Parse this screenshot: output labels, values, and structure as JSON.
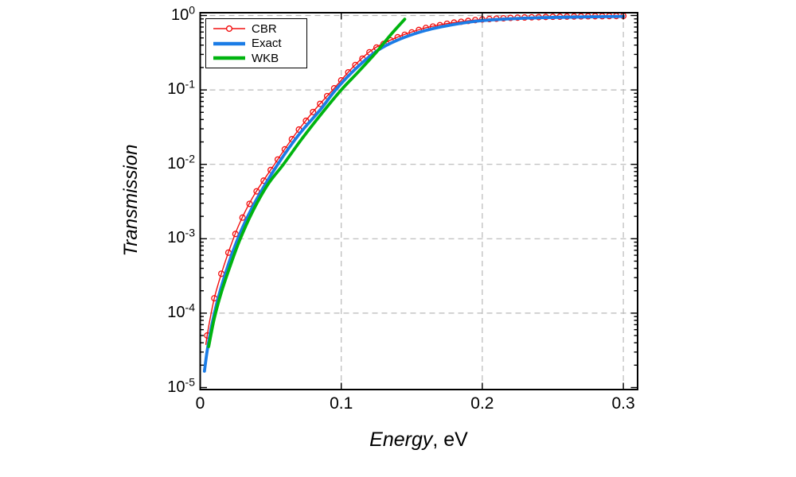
{
  "figure": {
    "background": "#ffffff",
    "frame_color": "#000000"
  },
  "chart_data": {
    "type": "line",
    "title": "",
    "xlabel_italic": "Energy",
    "xlabel_rest": ", eV",
    "ylabel": "Transmission",
    "x_axis": {
      "range": [
        0,
        0.31
      ],
      "ticks": [
        0,
        0.1,
        0.2,
        0.3
      ],
      "tick_labels": [
        "0",
        "0.1",
        "0.2",
        "0.3"
      ]
    },
    "y_axis": {
      "scale": "log",
      "range_log10": [
        -5.03,
        0.04
      ],
      "tick_exponents": [
        0,
        -1,
        -2,
        -3,
        -4,
        -5
      ],
      "minor_tick_factors": [
        2,
        3,
        4,
        5,
        6,
        7,
        8,
        9
      ],
      "minor_tick_decades": [
        -1,
        -2,
        -3,
        -4,
        -5
      ]
    },
    "grid": {
      "show": true,
      "color": "#b8b8b8",
      "dash": "7 5",
      "x_lines": [
        0.1,
        0.2,
        0.3
      ],
      "y_lines_log10": [
        0,
        -1,
        -2,
        -3,
        -4
      ]
    },
    "legend_position": "top-left",
    "series": [
      {
        "name": "CBR",
        "color": "#f21010",
        "width": 1.4,
        "marker": "open-circle",
        "marker_radius": 3.4,
        "marker_start": 0.005,
        "marker_step": 0.005,
        "marker_end": 0.3,
        "x": [
          0.004,
          0.006,
          0.01,
          0.015,
          0.021,
          0.028,
          0.038,
          0.053,
          0.068,
          0.082,
          0.094,
          0.108,
          0.122,
          0.138,
          0.158,
          0.178,
          0.198,
          0.222,
          0.248,
          0.274,
          0.3
        ],
        "log10T": [
          -4.42,
          -4.18,
          -3.8,
          -3.47,
          -3.13,
          -2.79,
          -2.42,
          -1.99,
          -1.58,
          -1.25,
          -1.0,
          -0.7,
          -0.46,
          -0.305,
          -0.175,
          -0.1,
          -0.055,
          -0.03,
          -0.018,
          -0.011,
          -0.006
        ]
      },
      {
        "name": "Exact",
        "color": "#1b7ce6",
        "width": 3.8,
        "marker": "none",
        "x": [
          0.003,
          0.005,
          0.008,
          0.012,
          0.017,
          0.023,
          0.03,
          0.04,
          0.055,
          0.07,
          0.085,
          0.096,
          0.11,
          0.125,
          0.14,
          0.16,
          0.18,
          0.2,
          0.225,
          0.25,
          0.275,
          0.3
        ],
        "log10T": [
          -4.78,
          -4.5,
          -4.18,
          -3.85,
          -3.52,
          -3.18,
          -2.85,
          -2.47,
          -2.0,
          -1.6,
          -1.27,
          -1.0,
          -0.72,
          -0.48,
          -0.33,
          -0.2,
          -0.12,
          -0.068,
          -0.04,
          -0.026,
          -0.018,
          -0.012
        ]
      },
      {
        "name": "WKB",
        "color": "#00b40f",
        "width": 3.8,
        "marker": "none",
        "x": [
          0.006,
          0.01,
          0.015,
          0.021,
          0.028,
          0.037,
          0.048,
          0.059,
          0.072,
          0.086,
          0.1,
          0.112,
          0.125,
          0.135,
          0.145
        ],
        "log10T": [
          -4.45,
          -4.07,
          -3.72,
          -3.38,
          -3.02,
          -2.64,
          -2.27,
          -2.0,
          -1.66,
          -1.32,
          -1.0,
          -0.76,
          -0.49,
          -0.26,
          -0.05
        ]
      }
    ]
  }
}
